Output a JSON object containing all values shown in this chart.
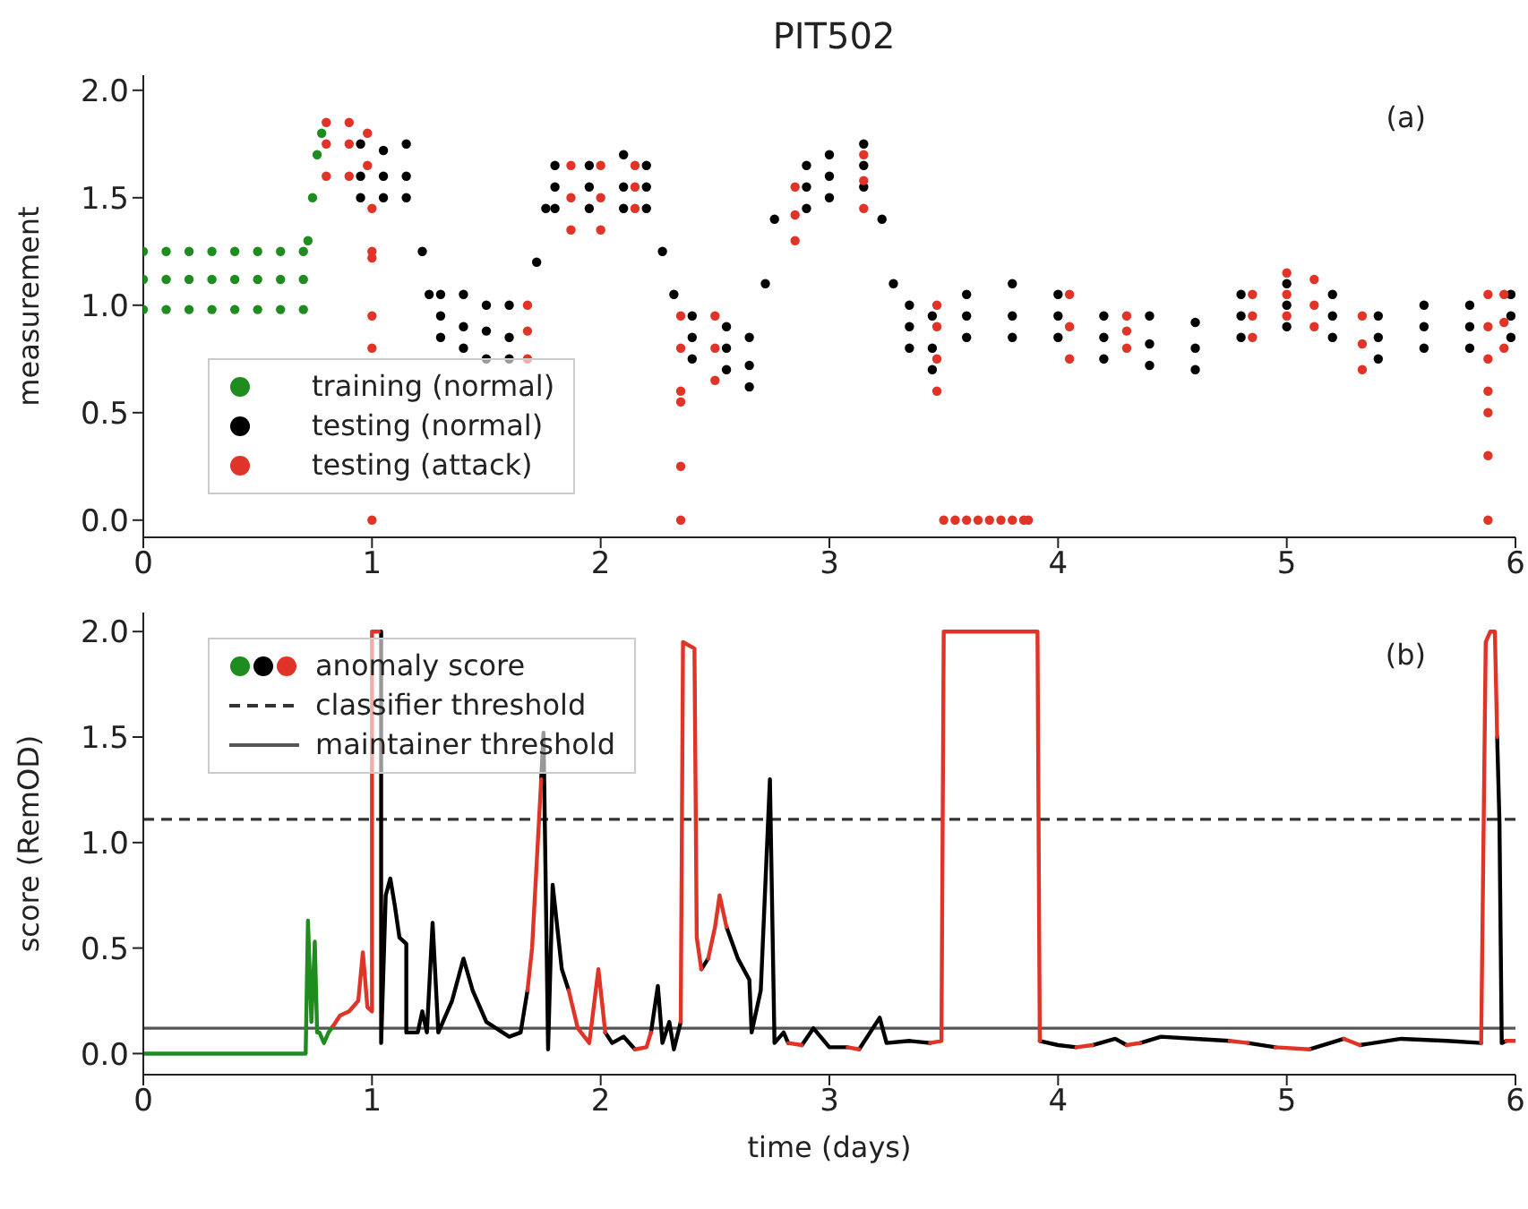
{
  "chart_data": [
    {
      "type": "scatter",
      "title": "PIT502",
      "ylabel": "measurement",
      "annotations": [
        "(a)"
      ],
      "xlim": [
        0,
        6
      ],
      "xticks": [
        0,
        1,
        2,
        3,
        4,
        5,
        6
      ],
      "ylim": [
        -0.08,
        2.07
      ],
      "yticks": [
        {
          "value": 0,
          "label": "0.0"
        },
        {
          "value": 0.5,
          "label": "0.5"
        },
        {
          "value": 1,
          "label": "1.0"
        },
        {
          "value": 1.5,
          "label": "1.5"
        },
        {
          "value": 2,
          "label": "2.0"
        }
      ],
      "legend": "bottom left",
      "marker": "circle",
      "series": [
        {
          "name": "training (normal)",
          "color": "#1e8c1e",
          "x": [
            0,
            0,
            0,
            0.1,
            0.1,
            0.1,
            0.2,
            0.2,
            0.2,
            0.3,
            0.3,
            0.3,
            0.4,
            0.4,
            0.4,
            0.5,
            0.5,
            0.5,
            0.6,
            0.6,
            0.6,
            0.7,
            0.7,
            0.7,
            0.72,
            0.74,
            0.76,
            0.78
          ],
          "values": [
            0.98,
            1.12,
            1.25,
            0.98,
            1.12,
            1.25,
            0.98,
            1.12,
            1.25,
            0.98,
            1.12,
            1.25,
            0.98,
            1.12,
            1.25,
            0.98,
            1.12,
            1.25,
            0.98,
            1.12,
            1.25,
            0.98,
            1.12,
            1.25,
            1.3,
            1.5,
            1.7,
            1.8
          ]
        },
        {
          "name": "testing (normal)",
          "color": "#000000",
          "x": [
            0.95,
            0.95,
            0.95,
            1.05,
            1.05,
            1.05,
            1.15,
            1.15,
            1.15,
            1.22,
            1.25,
            1.3,
            1.3,
            1.3,
            1.4,
            1.4,
            1.4,
            1.5,
            1.5,
            1.5,
            1.6,
            1.6,
            1.6,
            1.72,
            1.76,
            1.8,
            1.8,
            1.8,
            1.95,
            1.95,
            1.95,
            2.1,
            2.1,
            2.1,
            2.2,
            2.2,
            2.2,
            2.27,
            2.32,
            2.4,
            2.4,
            2.4,
            2.55,
            2.55,
            2.55,
            2.65,
            2.65,
            2.65,
            2.72,
            2.76,
            2.9,
            2.9,
            2.9,
            3.0,
            3.0,
            3.0,
            3.15,
            3.15,
            3.15,
            3.23,
            3.28,
            3.35,
            3.35,
            3.35,
            3.45,
            3.45,
            3.45,
            3.6,
            3.6,
            3.6,
            3.8,
            3.8,
            3.8,
            4.0,
            4.0,
            4.0,
            4.2,
            4.2,
            4.2,
            4.4,
            4.4,
            4.4,
            4.6,
            4.6,
            4.6,
            4.8,
            4.8,
            4.8,
            5.0,
            5.0,
            5.0,
            5.2,
            5.2,
            5.2,
            5.4,
            5.4,
            5.4,
            5.6,
            5.6,
            5.6,
            5.8,
            5.8,
            5.8,
            5.98,
            5.98,
            5.98
          ],
          "values": [
            1.5,
            1.6,
            1.75,
            1.5,
            1.6,
            1.72,
            1.5,
            1.6,
            1.75,
            1.25,
            1.05,
            0.85,
            0.95,
            1.05,
            0.8,
            0.9,
            1.05,
            0.75,
            0.88,
            1.0,
            0.75,
            0.85,
            1.0,
            1.2,
            1.45,
            1.45,
            1.55,
            1.65,
            1.45,
            1.55,
            1.65,
            1.45,
            1.55,
            1.7,
            1.45,
            1.55,
            1.65,
            1.25,
            1.05,
            0.75,
            0.85,
            0.95,
            0.7,
            0.8,
            0.9,
            0.62,
            0.72,
            0.85,
            1.1,
            1.4,
            1.45,
            1.55,
            1.65,
            1.5,
            1.6,
            1.7,
            1.55,
            1.65,
            1.75,
            1.4,
            1.1,
            0.8,
            0.9,
            1.0,
            0.7,
            0.8,
            0.95,
            0.85,
            0.95,
            1.05,
            0.85,
            0.95,
            1.1,
            0.85,
            0.95,
            1.05,
            0.75,
            0.85,
            0.95,
            0.72,
            0.82,
            0.95,
            0.7,
            0.8,
            0.92,
            0.85,
            0.95,
            1.05,
            0.9,
            1.0,
            1.1,
            0.85,
            0.95,
            1.05,
            0.75,
            0.85,
            0.95,
            0.8,
            0.9,
            1.0,
            0.8,
            0.9,
            1.0,
            0.85,
            0.95,
            1.05
          ]
        },
        {
          "name": "testing (attack)",
          "color": "#e03428",
          "x": [
            0.8,
            0.8,
            0.8,
            0.9,
            0.9,
            0.9,
            0.98,
            0.98,
            1.0,
            1.0,
            1.0,
            1.0,
            1.0,
            1.0,
            1.68,
            1.68,
            1.68,
            1.87,
            1.87,
            1.87,
            2.0,
            2.0,
            2.0,
            2.15,
            2.15,
            2.15,
            2.35,
            2.35,
            2.35,
            2.35,
            2.35,
            2.35,
            2.5,
            2.5,
            2.5,
            2.85,
            2.85,
            2.85,
            3.15,
            3.15,
            3.15,
            3.47,
            3.47,
            3.47,
            3.47,
            3.5,
            3.55,
            3.6,
            3.65,
            3.7,
            3.75,
            3.8,
            3.85,
            3.87,
            4.05,
            4.05,
            4.05,
            4.3,
            4.3,
            4.3,
            4.85,
            4.85,
            4.85,
            5.0,
            5.0,
            5.0,
            5.12,
            5.12,
            5.12,
            5.33,
            5.33,
            5.33,
            5.88,
            5.88,
            5.88,
            5.88,
            5.88,
            5.88,
            5.88,
            5.95,
            5.95,
            5.95
          ],
          "values": [
            1.6,
            1.75,
            1.85,
            1.6,
            1.75,
            1.85,
            1.65,
            1.8,
            1.45,
            1.25,
            1.22,
            0.95,
            0.8,
            0.0,
            0.75,
            0.88,
            1.0,
            1.35,
            1.5,
            1.65,
            1.35,
            1.5,
            1.65,
            1.45,
            1.55,
            1.65,
            0.95,
            0.8,
            0.6,
            0.55,
            0.25,
            0.0,
            0.65,
            0.8,
            0.95,
            1.3,
            1.42,
            1.55,
            1.45,
            1.58,
            1.7,
            0.6,
            0.75,
            0.9,
            1.0,
            0,
            0,
            0,
            0,
            0,
            0,
            0,
            0,
            0,
            0.75,
            0.9,
            1.05,
            0.8,
            0.88,
            0.95,
            0.85,
            0.95,
            1.05,
            0.95,
            1.05,
            1.15,
            0.9,
            1.0,
            1.12,
            0.7,
            0.82,
            0.95,
            1.05,
            0.9,
            0.75,
            0.6,
            0.5,
            0.3,
            0.0,
            0.8,
            0.92,
            1.05
          ]
        }
      ]
    },
    {
      "type": "line",
      "xlabel": "time (days)",
      "ylabel": "score (RemOD)",
      "annotations": [
        "(b)"
      ],
      "xlim": [
        0,
        6
      ],
      "xticks": [
        0,
        1,
        2,
        3,
        4,
        5,
        6
      ],
      "ylim": [
        -0.1,
        2.09
      ],
      "yticks": [
        {
          "value": 0,
          "label": "0.0"
        },
        {
          "value": 0.5,
          "label": "0.5"
        },
        {
          "value": 1,
          "label": "1.0"
        },
        {
          "value": 1.5,
          "label": "1.5"
        },
        {
          "value": 2,
          "label": "2.0"
        }
      ],
      "legend": "top left",
      "line_style": "solid",
      "ref_lines": [
        {
          "axis": "y",
          "value": 1.11,
          "label": "classifier threshold",
          "color": "#333333",
          "line_style": "dashed"
        },
        {
          "axis": "y",
          "value": 0.12,
          "label": "maintainer threshold",
          "color": "#555555",
          "line_style": "solid"
        }
      ],
      "series": [
        {
          "color": "#1e8c1e",
          "x": [
            0,
            0.71,
            0.72,
            0.735,
            0.75,
            0.76,
            0.77,
            0.79,
            0.81,
            0.83
          ],
          "values": [
            0,
            0,
            0.63,
            0.15,
            0.53,
            0.1,
            0.1,
            0.05,
            0.1,
            0.13
          ]
        },
        {
          "color": "#000000",
          "x": [
            1.04,
            1.04,
            1.06,
            1.08,
            1.1,
            1.12,
            1.15,
            1.15,
            1.2,
            1.22,
            1.24,
            1.265,
            1.29,
            1.35,
            1.4,
            1.44,
            1.5,
            1.6,
            1.65,
            1.68,
            null,
            1.74,
            1.75,
            1.77,
            1.79,
            1.83,
            1.86,
            null,
            2.02,
            2.05,
            2.1,
            2.15,
            null,
            2.22,
            2.25,
            2.27,
            2.3,
            2.32,
            2.35,
            null,
            2.44,
            2.47,
            null,
            2.55,
            2.6,
            2.65,
            2.66,
            2.7,
            2.74,
            2.76,
            2.8,
            2.82,
            null,
            2.88,
            2.93,
            3.0,
            3.08,
            null,
            3.13,
            3.22,
            3.25,
            3.35,
            3.44,
            null,
            3.92,
            4.0,
            4.08,
            null,
            4.15,
            4.25,
            4.3,
            null,
            4.36,
            4.45,
            4.6,
            4.75,
            null,
            4.83,
            4.95,
            null,
            5.1,
            5.25,
            null,
            5.32,
            5.5,
            5.7,
            5.85,
            null,
            5.92,
            5.93,
            5.94,
            5.96
          ],
          "values": [
            2.0,
            0.05,
            0.75,
            0.83,
            0.7,
            0.55,
            0.52,
            0.1,
            0.1,
            0.2,
            0.1,
            0.62,
            0.1,
            0.25,
            0.45,
            0.3,
            0.15,
            0.08,
            0.1,
            0.3,
            null,
            1.3,
            1.52,
            0.02,
            0.8,
            0.4,
            0.3,
            null,
            0.1,
            0.05,
            0.08,
            0.02,
            null,
            0.1,
            0.32,
            0.05,
            0.15,
            0.02,
            0.15,
            null,
            0.4,
            0.45,
            null,
            0.6,
            0.45,
            0.35,
            0.1,
            0.3,
            1.3,
            0.05,
            0.1,
            0.05,
            null,
            0.04,
            0.12,
            0.03,
            0.03,
            null,
            0.02,
            0.17,
            0.05,
            0.06,
            0.05,
            null,
            0.06,
            0.04,
            0.03,
            null,
            0.04,
            0.07,
            0.04,
            null,
            0.05,
            0.08,
            0.07,
            0.06,
            null,
            0.05,
            0.03,
            null,
            0.02,
            0.07,
            null,
            0.04,
            0.07,
            0.06,
            0.05,
            null,
            1.5,
            1.1,
            0.05,
            0.06
          ]
        },
        {
          "name": "anomaly score",
          "color": "#e03428",
          "x": [
            0.83,
            0.86,
            0.9,
            0.94,
            0.96,
            0.98,
            1.0,
            1.0,
            1.03,
            null,
            1.68,
            1.7,
            1.72,
            1.74,
            null,
            1.86,
            1.9,
            1.95,
            1.99,
            2.02,
            null,
            2.15,
            2.2,
            2.22,
            null,
            2.35,
            2.36,
            2.41,
            2.42,
            2.44,
            null,
            2.47,
            2.5,
            2.52,
            2.55,
            null,
            2.82,
            2.88,
            null,
            3.08,
            3.13,
            null,
            3.44,
            3.49,
            3.5,
            3.91,
            3.92,
            null,
            4.08,
            4.15,
            null,
            4.3,
            4.36,
            null,
            4.75,
            4.83,
            null,
            4.95,
            5.1,
            null,
            5.25,
            5.32,
            null,
            5.85,
            5.87,
            5.89,
            5.91,
            5.92,
            null,
            5.96,
            6.0
          ],
          "values": [
            0.13,
            0.18,
            0.2,
            0.25,
            0.48,
            0.22,
            0.2,
            2.0,
            2.0,
            null,
            0.3,
            0.5,
            0.9,
            1.3,
            null,
            0.3,
            0.12,
            0.05,
            0.4,
            0.1,
            null,
            0.02,
            0.03,
            0.1,
            null,
            0.15,
            1.95,
            1.92,
            0.55,
            0.4,
            null,
            0.45,
            0.6,
            0.75,
            0.6,
            null,
            0.05,
            0.04,
            null,
            0.03,
            0.02,
            null,
            0.05,
            0.06,
            2.0,
            2.0,
            0.06,
            null,
            0.03,
            0.04,
            null,
            0.04,
            0.05,
            null,
            0.06,
            0.05,
            null,
            0.03,
            0.02,
            null,
            0.07,
            0.04,
            null,
            0.05,
            1.95,
            2.0,
            2.0,
            1.5,
            null,
            0.06,
            0.06
          ]
        }
      ]
    }
  ]
}
